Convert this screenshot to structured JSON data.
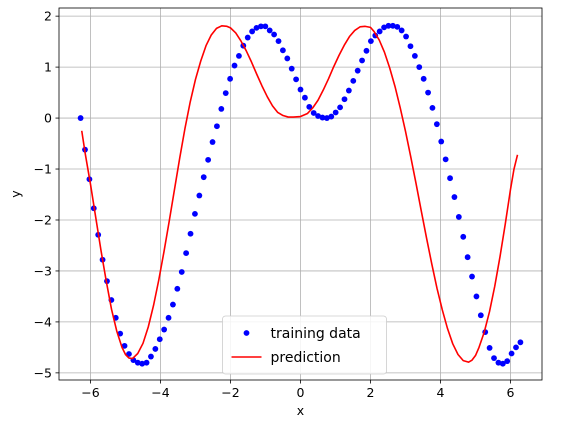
{
  "chart_data": {
    "type": "scatter",
    "xlabel": "x",
    "ylabel": "y",
    "xlim": [
      -6.9,
      6.9
    ],
    "ylim": [
      -5.14,
      2.16
    ],
    "grid": true,
    "legend_position": "lower-center",
    "xticks": [
      -6,
      -4,
      -2,
      0,
      2,
      4,
      6
    ],
    "xtick_labels": [
      "−6",
      "−4",
      "−2",
      "0",
      "2",
      "4",
      "6"
    ],
    "yticks": [
      -5,
      -4,
      -3,
      -2,
      -1,
      0,
      1,
      2
    ],
    "ytick_labels": [
      "−5",
      "−4",
      "−3",
      "−2",
      "−1",
      "0",
      "1",
      "2"
    ],
    "series": [
      {
        "name": "training data",
        "style": "points",
        "color": "#0000ff",
        "x": [
          -6.283,
          -6.157,
          -6.031,
          -5.906,
          -5.78,
          -5.655,
          -5.529,
          -5.403,
          -5.278,
          -5.152,
          -5.027,
          -4.901,
          -4.775,
          -4.65,
          -4.524,
          -4.398,
          -4.273,
          -4.147,
          -4.021,
          -3.896,
          -3.77,
          -3.645,
          -3.519,
          -3.393,
          -3.268,
          -3.142,
          -3.016,
          -2.89,
          -2.765,
          -2.639,
          -2.513,
          -2.388,
          -2.262,
          -2.136,
          -2.011,
          -1.885,
          -1.759,
          -1.634,
          -1.508,
          -1.382,
          -1.257,
          -1.131,
          -1.005,
          -0.88,
          -0.754,
          -0.628,
          -0.503,
          -0.377,
          -0.251,
          -0.126,
          0.0,
          0.126,
          0.251,
          0.377,
          0.503,
          0.628,
          0.754,
          0.88,
          1.005,
          1.131,
          1.257,
          1.382,
          1.508,
          1.634,
          1.759,
          1.885,
          2.011,
          2.136,
          2.262,
          2.388,
          2.513,
          2.639,
          2.765,
          2.89,
          3.016,
          3.142,
          3.268,
          3.393,
          3.519,
          3.645,
          3.77,
          3.896,
          4.021,
          4.147,
          4.273,
          4.398,
          4.524,
          4.65,
          4.775,
          4.901,
          5.027,
          5.152,
          5.278,
          5.403,
          5.529,
          5.655,
          5.78,
          5.906,
          6.031,
          6.157,
          6.283
        ],
        "y": [
          0.0,
          -0.62,
          -1.2,
          -1.77,
          -2.29,
          -2.78,
          -3.2,
          -3.57,
          -3.92,
          -4.23,
          -4.47,
          -4.63,
          -4.75,
          -4.8,
          -4.82,
          -4.8,
          -4.68,
          -4.53,
          -4.34,
          -4.15,
          -3.92,
          -3.66,
          -3.35,
          -3.02,
          -2.65,
          -2.27,
          -1.88,
          -1.52,
          -1.16,
          -0.82,
          -0.47,
          -0.16,
          0.18,
          0.49,
          0.77,
          1.03,
          1.22,
          1.42,
          1.58,
          1.7,
          1.77,
          1.8,
          1.8,
          1.72,
          1.64,
          1.51,
          1.33,
          1.17,
          0.97,
          0.76,
          0.56,
          0.4,
          0.22,
          0.1,
          0.04,
          0.01,
          0.0,
          0.03,
          0.11,
          0.21,
          0.37,
          0.54,
          0.73,
          0.93,
          1.13,
          1.32,
          1.51,
          1.62,
          1.7,
          1.78,
          1.81,
          1.81,
          1.79,
          1.72,
          1.6,
          1.41,
          1.22,
          1.0,
          0.77,
          0.5,
          0.2,
          -0.12,
          -0.46,
          -0.81,
          -1.18,
          -1.55,
          -1.94,
          -2.33,
          -2.73,
          -3.11,
          -3.5,
          -3.87,
          -4.2,
          -4.51,
          -4.71,
          -4.8,
          -4.82,
          -4.77,
          -4.62,
          -4.5,
          -4.4
        ]
      },
      {
        "name": "prediction",
        "style": "line",
        "color": "#ff0000",
        "x": [
          -6.25,
          -6.15,
          -6.0,
          -5.85,
          -5.7,
          -5.55,
          -5.4,
          -5.25,
          -5.1,
          -5.0,
          -4.9,
          -4.8,
          -4.65,
          -4.5,
          -4.35,
          -4.2,
          -4.05,
          -3.9,
          -3.75,
          -3.6,
          -3.45,
          -3.3,
          -3.15,
          -3.0,
          -2.85,
          -2.7,
          -2.55,
          -2.4,
          -2.25,
          -2.1,
          -2.0,
          -1.85,
          -1.7,
          -1.55,
          -1.4,
          -1.25,
          -1.1,
          -0.95,
          -0.8,
          -0.65,
          -0.5,
          -0.35,
          -0.2,
          0.0,
          0.2,
          0.35,
          0.5,
          0.65,
          0.8,
          0.95,
          1.1,
          1.25,
          1.4,
          1.55,
          1.7,
          1.85,
          2.0,
          2.1,
          2.25,
          2.4,
          2.55,
          2.7,
          2.85,
          3.0,
          3.15,
          3.3,
          3.45,
          3.6,
          3.75,
          3.9,
          4.05,
          4.2,
          4.35,
          4.5,
          4.65,
          4.8,
          4.9,
          5.0,
          5.1,
          5.25,
          5.4,
          5.55,
          5.7,
          5.85,
          6.0,
          6.1,
          6.2
        ],
        "y": [
          -0.25,
          -0.7,
          -1.3,
          -1.95,
          -2.6,
          -3.2,
          -3.75,
          -4.18,
          -4.5,
          -4.64,
          -4.71,
          -4.72,
          -4.62,
          -4.42,
          -4.1,
          -3.68,
          -3.18,
          -2.62,
          -2.02,
          -1.4,
          -0.78,
          -0.2,
          0.32,
          0.76,
          1.12,
          1.42,
          1.63,
          1.76,
          1.81,
          1.8,
          1.77,
          1.67,
          1.51,
          1.32,
          1.1,
          0.86,
          0.63,
          0.42,
          0.24,
          0.11,
          0.05,
          0.02,
          0.02,
          0.03,
          0.09,
          0.2,
          0.35,
          0.55,
          0.77,
          1.01,
          1.23,
          1.43,
          1.6,
          1.72,
          1.79,
          1.8,
          1.78,
          1.7,
          1.53,
          1.29,
          0.98,
          0.62,
          0.2,
          -0.26,
          -0.76,
          -1.28,
          -1.82,
          -2.35,
          -2.86,
          -3.34,
          -3.76,
          -4.13,
          -4.43,
          -4.64,
          -4.76,
          -4.79,
          -4.75,
          -4.66,
          -4.5,
          -4.2,
          -3.8,
          -3.3,
          -2.72,
          -2.08,
          -1.4,
          -1.0,
          -0.72
        ]
      }
    ]
  }
}
